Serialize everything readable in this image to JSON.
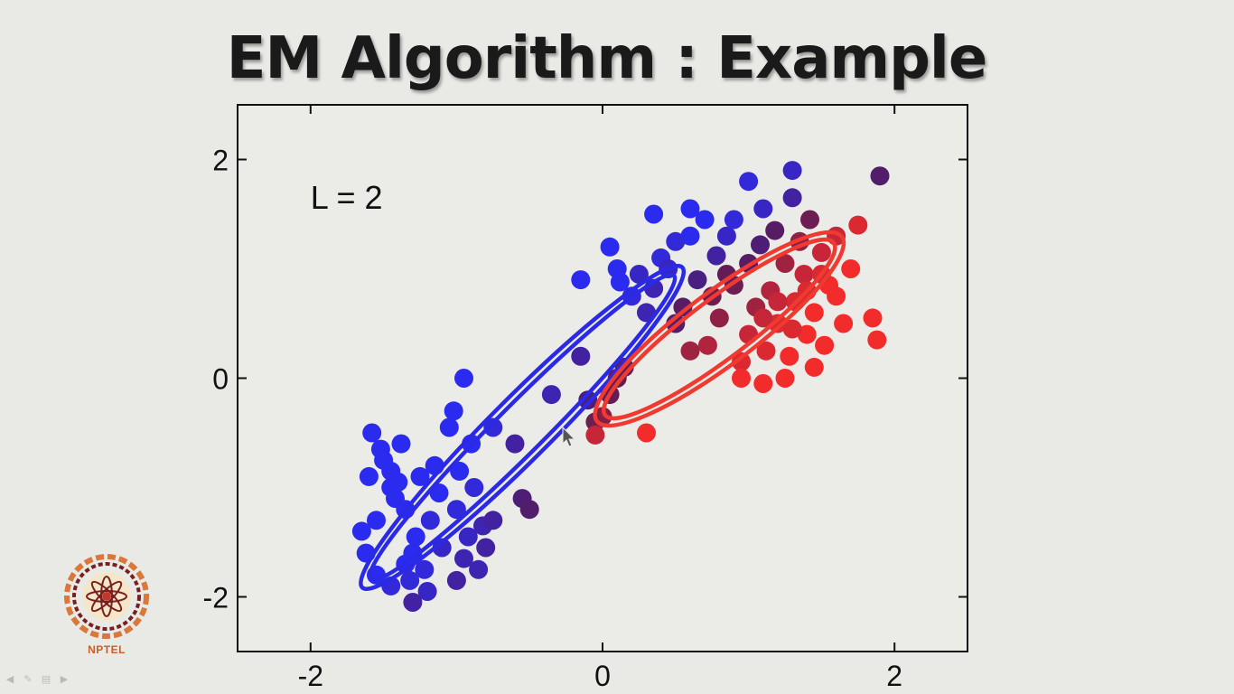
{
  "slide": {
    "title": "EM Algorithm : Example",
    "logo_text": "NPTEL"
  },
  "colors": {
    "cluster_blue": "#2b2bf0",
    "cluster_red": "#f22b2b",
    "ellipse_blue": "#2a2ae6",
    "ellipse_red": "#f03a2f",
    "logo_orange": "#d9783a",
    "logo_dark": "#7a1f1f"
  },
  "chart_data": {
    "type": "scatter",
    "annotation": "L = 2",
    "xlim": [
      -2.5,
      2.5
    ],
    "ylim": [
      -2.5,
      2.5
    ],
    "xticks": [
      -2,
      0,
      2
    ],
    "yticks": [
      -2,
      0,
      2
    ],
    "xtick_labels": [
      "-2",
      "0",
      "2"
    ],
    "ytick_labels": [
      "-2",
      "0",
      "2"
    ],
    "grid": false,
    "legend": "none",
    "color_encoding": "points colored by responsibility: 0 = blue cluster, 1 = red cluster",
    "points": [
      {
        "x": -1.65,
        "y": -1.4,
        "r": 0.0
      },
      {
        "x": -1.55,
        "y": -1.3,
        "r": 0.0
      },
      {
        "x": -1.6,
        "y": -0.9,
        "r": 0.0
      },
      {
        "x": -1.58,
        "y": -0.5,
        "r": 0.0
      },
      {
        "x": -1.52,
        "y": -0.65,
        "r": 0.0
      },
      {
        "x": -1.5,
        "y": -0.75,
        "r": 0.0
      },
      {
        "x": -1.45,
        "y": -0.85,
        "r": 0.0
      },
      {
        "x": -1.45,
        "y": -1.0,
        "r": 0.0
      },
      {
        "x": -1.42,
        "y": -1.1,
        "r": 0.0
      },
      {
        "x": -1.4,
        "y": -0.95,
        "r": 0.0
      },
      {
        "x": -1.38,
        "y": -0.6,
        "r": 0.0
      },
      {
        "x": -1.35,
        "y": -1.2,
        "r": 0.0
      },
      {
        "x": -1.35,
        "y": -1.7,
        "r": 0.0
      },
      {
        "x": -1.32,
        "y": -1.85,
        "r": 0.05
      },
      {
        "x": -1.3,
        "y": -1.6,
        "r": 0.0
      },
      {
        "x": -1.28,
        "y": -1.45,
        "r": 0.0
      },
      {
        "x": -1.25,
        "y": -0.9,
        "r": 0.0
      },
      {
        "x": -1.22,
        "y": -1.75,
        "r": 0.05
      },
      {
        "x": -1.2,
        "y": -1.95,
        "r": 0.1
      },
      {
        "x": -1.18,
        "y": -1.3,
        "r": 0.05
      },
      {
        "x": -1.15,
        "y": -0.8,
        "r": 0.0
      },
      {
        "x": -1.12,
        "y": -1.05,
        "r": 0.0
      },
      {
        "x": -1.1,
        "y": -1.55,
        "r": 0.1
      },
      {
        "x": -1.05,
        "y": -0.45,
        "r": 0.0
      },
      {
        "x": -1.02,
        "y": -0.3,
        "r": 0.0
      },
      {
        "x": -1.0,
        "y": -1.2,
        "r": 0.05
      },
      {
        "x": -0.98,
        "y": -0.85,
        "r": 0.0
      },
      {
        "x": -0.95,
        "y": -1.65,
        "r": 0.15
      },
      {
        "x": -0.92,
        "y": -1.45,
        "r": 0.1
      },
      {
        "x": -0.9,
        "y": -0.6,
        "r": 0.0
      },
      {
        "x": -0.88,
        "y": -1.0,
        "r": 0.05
      },
      {
        "x": -0.85,
        "y": -1.75,
        "r": 0.15
      },
      {
        "x": -0.82,
        "y": -1.35,
        "r": 0.15
      },
      {
        "x": -0.8,
        "y": -1.55,
        "r": 0.2
      },
      {
        "x": -1.3,
        "y": -2.05,
        "r": 0.2
      },
      {
        "x": -1.45,
        "y": -1.9,
        "r": 0.05
      },
      {
        "x": -1.55,
        "y": -1.8,
        "r": 0.0
      },
      {
        "x": -1.62,
        "y": -1.6,
        "r": 0.0
      },
      {
        "x": -1.0,
        "y": -1.85,
        "r": 0.2
      },
      {
        "x": -0.95,
        "y": 0.0,
        "r": 0.0
      },
      {
        "x": -0.75,
        "y": -0.45,
        "r": 0.05
      },
      {
        "x": -0.75,
        "y": -1.3,
        "r": 0.2
      },
      {
        "x": -0.6,
        "y": -0.6,
        "r": 0.2
      },
      {
        "x": -0.55,
        "y": -1.1,
        "r": 0.35
      },
      {
        "x": -0.5,
        "y": -1.2,
        "r": 0.4
      },
      {
        "x": -0.35,
        "y": -0.15,
        "r": 0.15
      },
      {
        "x": -0.15,
        "y": 0.2,
        "r": 0.2
      },
      {
        "x": -0.1,
        "y": -0.2,
        "r": 0.35
      },
      {
        "x": -0.05,
        "y": -0.4,
        "r": 0.6
      },
      {
        "x": 0.0,
        "y": -0.35,
        "r": 0.7
      },
      {
        "x": -0.05,
        "y": -0.52,
        "r": 0.9
      },
      {
        "x": 0.05,
        "y": -0.15,
        "r": 0.55
      },
      {
        "x": 0.1,
        "y": 0.0,
        "r": 0.55
      },
      {
        "x": 0.15,
        "y": 0.1,
        "r": 0.5
      },
      {
        "x": 0.3,
        "y": -0.5,
        "r": 1.0
      },
      {
        "x": -0.15,
        "y": 0.9,
        "r": 0.0
      },
      {
        "x": 0.05,
        "y": 1.2,
        "r": 0.0
      },
      {
        "x": 0.1,
        "y": 1.0,
        "r": 0.0
      },
      {
        "x": 0.12,
        "y": 0.88,
        "r": 0.0
      },
      {
        "x": 0.2,
        "y": 0.75,
        "r": 0.05
      },
      {
        "x": 0.25,
        "y": 0.95,
        "r": 0.1
      },
      {
        "x": 0.3,
        "y": 0.6,
        "r": 0.15
      },
      {
        "x": 0.35,
        "y": 0.82,
        "r": 0.15
      },
      {
        "x": 0.4,
        "y": 1.1,
        "r": 0.05
      },
      {
        "x": 0.45,
        "y": 1.0,
        "r": 0.1
      },
      {
        "x": 0.5,
        "y": 0.5,
        "r": 0.4
      },
      {
        "x": 0.55,
        "y": 0.65,
        "r": 0.45
      },
      {
        "x": 0.6,
        "y": 1.3,
        "r": 0.0
      },
      {
        "x": 0.6,
        "y": 1.55,
        "r": 0.0
      },
      {
        "x": 0.65,
        "y": 0.9,
        "r": 0.3
      },
      {
        "x": 0.7,
        "y": 1.45,
        "r": 0.0
      },
      {
        "x": 0.72,
        "y": 0.3,
        "r": 0.85
      },
      {
        "x": 0.75,
        "y": 0.75,
        "r": 0.6
      },
      {
        "x": 0.78,
        "y": 1.12,
        "r": 0.2
      },
      {
        "x": 0.8,
        "y": 0.55,
        "r": 0.75
      },
      {
        "x": 0.85,
        "y": 1.3,
        "r": 0.1
      },
      {
        "x": 0.9,
        "y": 1.45,
        "r": 0.05
      },
      {
        "x": 0.9,
        "y": 0.85,
        "r": 0.6
      },
      {
        "x": 0.95,
        "y": 0.15,
        "r": 0.95
      },
      {
        "x": 1.0,
        "y": 0.4,
        "r": 0.9
      },
      {
        "x": 1.0,
        "y": 1.05,
        "r": 0.45
      },
      {
        "x": 1.05,
        "y": 0.65,
        "r": 0.8
      },
      {
        "x": 1.08,
        "y": 1.22,
        "r": 0.35
      },
      {
        "x": 1.1,
        "y": 1.55,
        "r": 0.1
      },
      {
        "x": 1.12,
        "y": 0.25,
        "r": 0.95
      },
      {
        "x": 1.15,
        "y": 0.8,
        "r": 0.85
      },
      {
        "x": 1.18,
        "y": 1.35,
        "r": 0.45
      },
      {
        "x": 1.2,
        "y": 0.5,
        "r": 0.95
      },
      {
        "x": 1.25,
        "y": 1.05,
        "r": 0.8
      },
      {
        "x": 1.28,
        "y": 0.2,
        "r": 1.0
      },
      {
        "x": 1.3,
        "y": 1.65,
        "r": 0.2
      },
      {
        "x": 1.32,
        "y": 0.7,
        "r": 0.95
      },
      {
        "x": 1.35,
        "y": 1.25,
        "r": 0.75
      },
      {
        "x": 1.38,
        "y": 0.95,
        "r": 0.9
      },
      {
        "x": 1.4,
        "y": 0.4,
        "r": 1.0
      },
      {
        "x": 1.42,
        "y": 1.45,
        "r": 0.6
      },
      {
        "x": 1.45,
        "y": 0.6,
        "r": 1.0
      },
      {
        "x": 1.5,
        "y": 1.15,
        "r": 0.9
      },
      {
        "x": 1.52,
        "y": 0.3,
        "r": 1.0
      },
      {
        "x": 1.55,
        "y": 0.85,
        "r": 1.0
      },
      {
        "x": 1.6,
        "y": 1.3,
        "r": 0.9
      },
      {
        "x": 1.65,
        "y": 0.5,
        "r": 1.0
      },
      {
        "x": 1.7,
        "y": 1.0,
        "r": 1.0
      },
      {
        "x": 1.75,
        "y": 1.4,
        "r": 0.95
      },
      {
        "x": 1.85,
        "y": 0.55,
        "r": 1.0
      },
      {
        "x": 1.88,
        "y": 0.35,
        "r": 1.0
      },
      {
        "x": 1.9,
        "y": 1.85,
        "r": 0.4
      },
      {
        "x": 1.3,
        "y": 1.9,
        "r": 0.1
      },
      {
        "x": 1.0,
        "y": 1.8,
        "r": 0.05
      },
      {
        "x": 0.35,
        "y": 1.5,
        "r": 0.0
      },
      {
        "x": 0.5,
        "y": 1.25,
        "r": 0.05
      },
      {
        "x": 0.95,
        "y": 0.0,
        "r": 1.0
      },
      {
        "x": 1.1,
        "y": -0.05,
        "r": 1.0
      },
      {
        "x": 1.25,
        "y": 0.0,
        "r": 1.0
      },
      {
        "x": 1.45,
        "y": 0.1,
        "r": 1.0
      },
      {
        "x": 0.85,
        "y": 0.95,
        "r": 0.55
      },
      {
        "x": 1.3,
        "y": 0.45,
        "r": 0.95
      },
      {
        "x": 1.6,
        "y": 0.75,
        "r": 1.0
      },
      {
        "x": 1.5,
        "y": 0.95,
        "r": 0.95
      },
      {
        "x": 1.4,
        "y": 0.8,
        "r": 0.95
      },
      {
        "x": 1.2,
        "y": 0.7,
        "r": 0.9
      },
      {
        "x": 1.1,
        "y": 0.55,
        "r": 0.9
      },
      {
        "x": 0.6,
        "y": 0.25,
        "r": 0.8
      }
    ],
    "ellipses": [
      {
        "cluster": "blue",
        "cx": -0.55,
        "cy": -0.45,
        "rx": 1.55,
        "ry": 0.28,
        "angle_deg": 45
      },
      {
        "cluster": "blue",
        "cx": -0.55,
        "cy": -0.45,
        "rx": 1.47,
        "ry": 0.22,
        "angle_deg": 45
      },
      {
        "cluster": "red",
        "cx": 0.8,
        "cy": 0.45,
        "rx": 1.05,
        "ry": 0.33,
        "angle_deg": 37
      },
      {
        "cluster": "red",
        "cx": 0.8,
        "cy": 0.45,
        "rx": 0.98,
        "ry": 0.27,
        "angle_deg": 37
      }
    ]
  }
}
